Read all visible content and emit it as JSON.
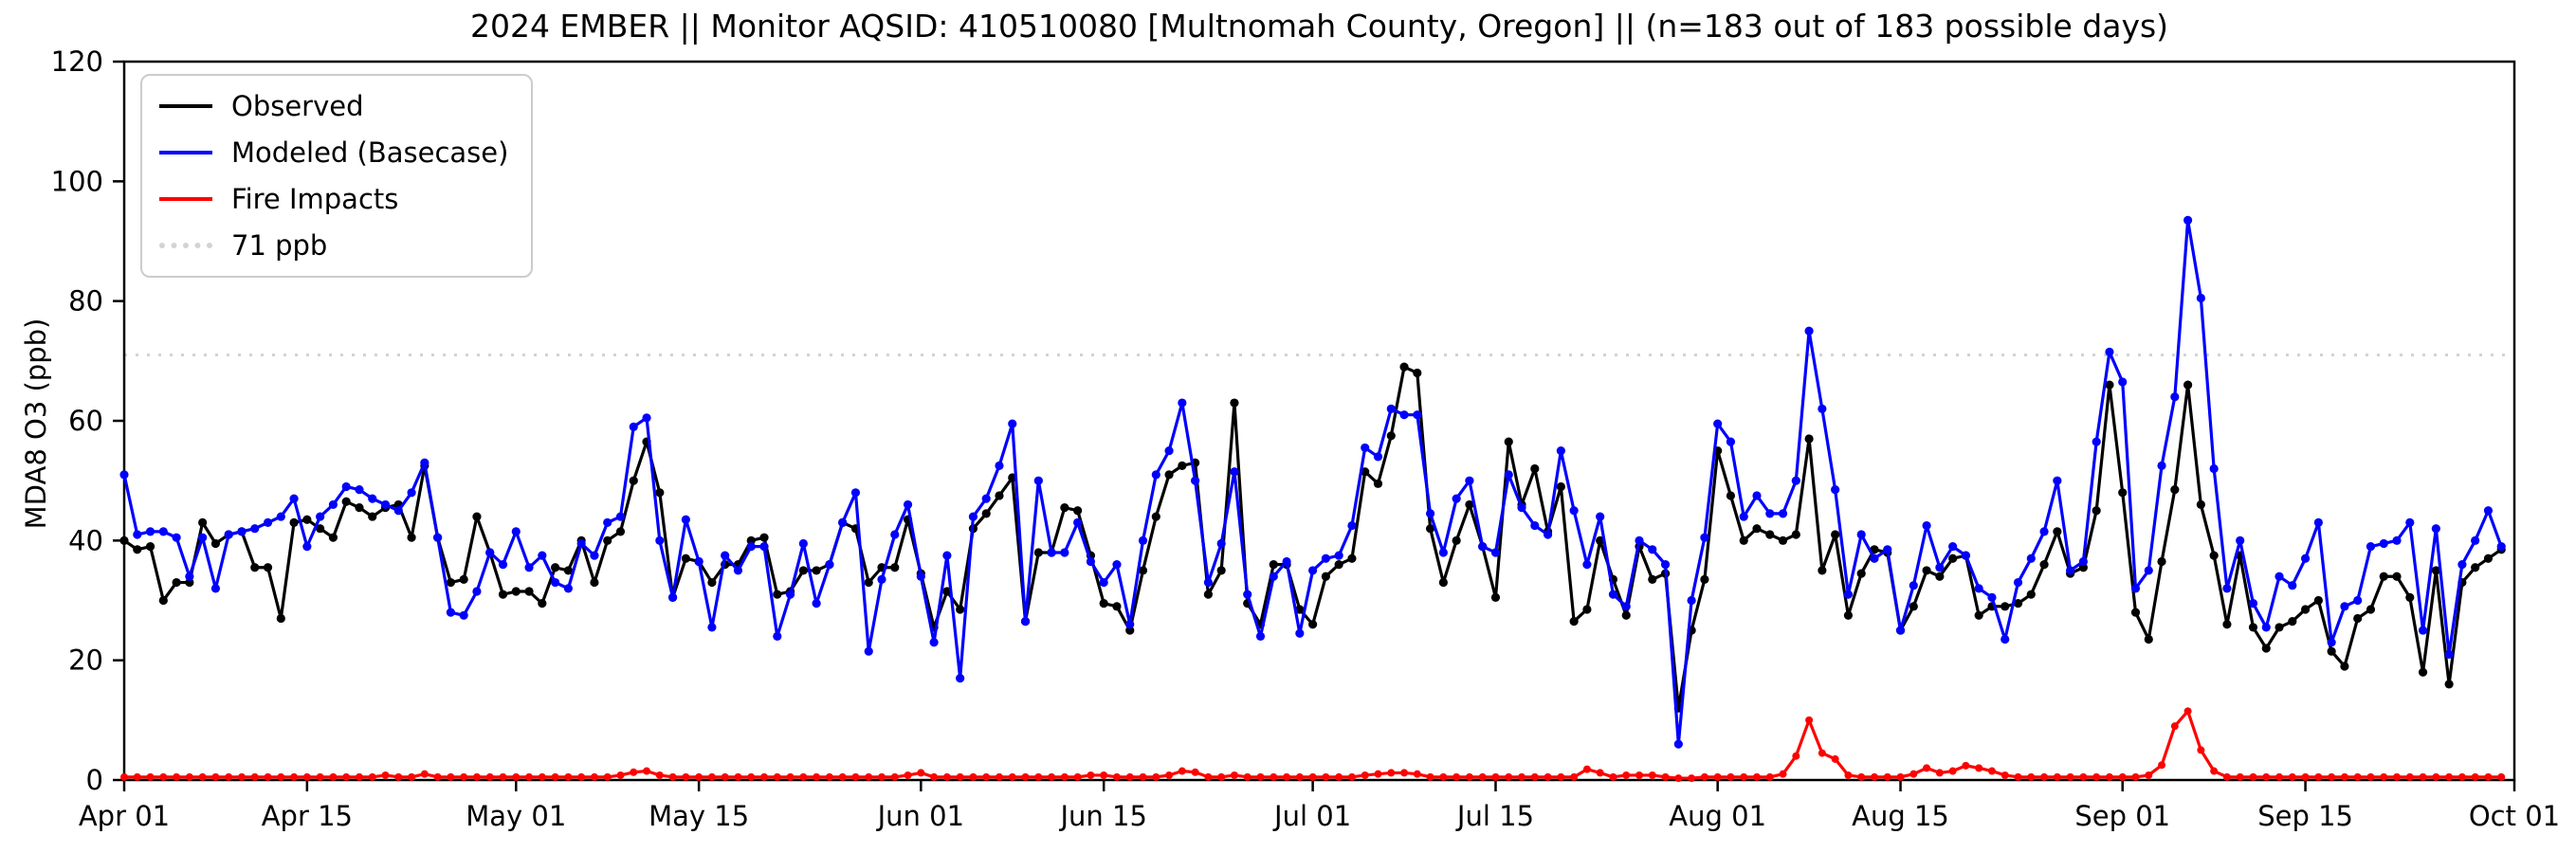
{
  "title": "2024 EMBER || Monitor AQSID: 410510080 [Multnomah County, Oregon] || (n=183 out of 183 possible days)",
  "axes": {
    "ylabel": "MDA8 O3 (ppb)",
    "ylim": [
      0,
      120
    ],
    "yticks": [
      0,
      20,
      40,
      60,
      80,
      100,
      120
    ],
    "xtick_labels": [
      "Apr 01",
      "Apr 15",
      "May 01",
      "May 15",
      "Jun 01",
      "Jun 15",
      "Jul 01",
      "Jul 15",
      "Aug 01",
      "Aug 15",
      "Sep 01",
      "Sep 15",
      "Oct 01"
    ],
    "xtick_days": [
      0,
      14,
      30,
      44,
      61,
      75,
      91,
      105,
      122,
      136,
      153,
      167,
      183
    ],
    "n_days": 183
  },
  "legend": [
    {
      "label": "Observed",
      "color": "#000000",
      "style": "solid"
    },
    {
      "label": "Modeled (Basecase)",
      "color": "#0000ff",
      "style": "solid"
    },
    {
      "label": "Fire Impacts",
      "color": "#ff0000",
      "style": "solid"
    },
    {
      "label": "71 ppb",
      "color": "#d3d3d3",
      "style": "dotted"
    }
  ],
  "chart_data": {
    "type": "line",
    "title": "2024 EMBER || Monitor AQSID: 410510080 [Multnomah County, Oregon] || (n=183 out of 183 possible days)",
    "xlabel": "",
    "ylabel": "MDA8 O3 (ppb)",
    "ylim": [
      0,
      120
    ],
    "grid": false,
    "legend_position": "upper left",
    "x_start": "Apr 01",
    "x_end": "Sep 30",
    "x_count": 183,
    "threshold": {
      "label": "71 ppb",
      "value": 71,
      "color": "#d3d3d3",
      "style": "dotted"
    },
    "series": [
      {
        "name": "Observed",
        "color": "#000000",
        "marker": "circle",
        "values": [
          40,
          38.5,
          39,
          30,
          33,
          33,
          43,
          39.5,
          41,
          41.5,
          35.5,
          35.5,
          27,
          43,
          43.5,
          42,
          40.5,
          46.5,
          45.5,
          44,
          45.5,
          46,
          40.5,
          52.5,
          40.5,
          33,
          33.5,
          44,
          38,
          31,
          31.5,
          31.5,
          29.5,
          35.5,
          35,
          40,
          33,
          40,
          41.5,
          50,
          56.5,
          48,
          30.5,
          37,
          36.5,
          33,
          36,
          36,
          40,
          40.5,
          31,
          31.5,
          35,
          35,
          36,
          43,
          42,
          33,
          35.5,
          35.5,
          43.5,
          34.5,
          25.5,
          31.5,
          28.5,
          42,
          44.5,
          47.5,
          50.5,
          26.5,
          38,
          38,
          45.5,
          45,
          37.5,
          29.5,
          29,
          25,
          35,
          44,
          51,
          52.5,
          53,
          31,
          35,
          63,
          29.5,
          26,
          36,
          36,
          28.5,
          26,
          34,
          36,
          37,
          51.5,
          49.5,
          57.5,
          69,
          68,
          42,
          33,
          40,
          46,
          39,
          30.5,
          56.5,
          46,
          52,
          41.5,
          49,
          26.5,
          28.5,
          40,
          33.5,
          27.5,
          39,
          33.5,
          34.5,
          12,
          25,
          33.5,
          55,
          47.5,
          40,
          42,
          41,
          40,
          41,
          57,
          35,
          41,
          27.5,
          34.5,
          38.5,
          38,
          25,
          29,
          35,
          34,
          37,
          37.5,
          27.5,
          29,
          29,
          29.5,
          31,
          36,
          41.5,
          34.5,
          35.5,
          45,
          66,
          48,
          28,
          23.5,
          36.5,
          48.5,
          66,
          46,
          37.5,
          26,
          37.5,
          25.5,
          22,
          25.5,
          26.5,
          28.5,
          30,
          21.5,
          19,
          27,
          28.5,
          34,
          34,
          30.5,
          18,
          35,
          16,
          33,
          35.5,
          37,
          38.5
        ]
      },
      {
        "name": "Modeled (Basecase)",
        "color": "#0000ff",
        "marker": "circle",
        "values": [
          51,
          41,
          41.5,
          41.5,
          40.5,
          34,
          40.5,
          32,
          41,
          41.5,
          42,
          43,
          44,
          47,
          39,
          44,
          46,
          49,
          48.5,
          47,
          46,
          45,
          48,
          53,
          40.5,
          28,
          27.5,
          31.5,
          38,
          36,
          41.5,
          35.5,
          37.5,
          33,
          32,
          39.5,
          37.5,
          43,
          44,
          59,
          60.5,
          40,
          30.5,
          43.5,
          36.5,
          25.5,
          37.5,
          35,
          39,
          39,
          24,
          31,
          39.5,
          29.5,
          36,
          43,
          48,
          21.5,
          33.5,
          41,
          46,
          34,
          23,
          37.5,
          17,
          44,
          47,
          52.5,
          59.5,
          26.5,
          50,
          38,
          38,
          43,
          36.5,
          33,
          36,
          26,
          40,
          51,
          55,
          63,
          50,
          33,
          39.5,
          51.5,
          31,
          24,
          34,
          36.5,
          24.5,
          35,
          37,
          37.5,
          42.5,
          55.5,
          54,
          62,
          61,
          61,
          44.5,
          38,
          47,
          50,
          39,
          38,
          51,
          45.5,
          42.5,
          41,
          55,
          45,
          36,
          44,
          31,
          29,
          40,
          38.5,
          36,
          6,
          30,
          40.5,
          59.5,
          56.5,
          44,
          47.5,
          44.5,
          44.5,
          50,
          75,
          62,
          48.5,
          31,
          41,
          37,
          38.5,
          25,
          32.5,
          42.5,
          35.5,
          39,
          37.5,
          32,
          30.5,
          23.5,
          33,
          37,
          41.5,
          50,
          35,
          36.5,
          56.5,
          71.5,
          66.5,
          32,
          35,
          52.5,
          64,
          93.5,
          80.5,
          52,
          32,
          40,
          29.5,
          25.5,
          34,
          32.5,
          37,
          43,
          23,
          29,
          30,
          39,
          39.5,
          40,
          43,
          25,
          42,
          21,
          36,
          40,
          45,
          39
        ]
      },
      {
        "name": "Fire Impacts",
        "color": "#ff0000",
        "marker": "circle",
        "values": [
          0.5,
          0.5,
          0.5,
          0.5,
          0.5,
          0.5,
          0.5,
          0.5,
          0.5,
          0.5,
          0.5,
          0.5,
          0.5,
          0.5,
          0.5,
          0.5,
          0.5,
          0.5,
          0.5,
          0.5,
          0.8,
          0.5,
          0.5,
          1,
          0.5,
          0.5,
          0.5,
          0.5,
          0.5,
          0.5,
          0.5,
          0.5,
          0.5,
          0.5,
          0.5,
          0.5,
          0.5,
          0.5,
          0.8,
          1.3,
          1.5,
          0.8,
          0.5,
          0.5,
          0.5,
          0.5,
          0.5,
          0.5,
          0.5,
          0.5,
          0.5,
          0.5,
          0.5,
          0.5,
          0.5,
          0.5,
          0.5,
          0.5,
          0.5,
          0.5,
          0.8,
          1.2,
          0.5,
          0.5,
          0.5,
          0.5,
          0.5,
          0.5,
          0.5,
          0.5,
          0.5,
          0.5,
          0.5,
          0.5,
          0.8,
          0.8,
          0.5,
          0.5,
          0.5,
          0.5,
          0.8,
          1.5,
          1.3,
          0.5,
          0.5,
          0.8,
          0.5,
          0.5,
          0.5,
          0.5,
          0.5,
          0.5,
          0.5,
          0.5,
          0.5,
          0.8,
          1,
          1.2,
          1.2,
          1,
          0.5,
          0.5,
          0.5,
          0.5,
          0.5,
          0.5,
          0.5,
          0.5,
          0.5,
          0.5,
          0.5,
          0.5,
          1.8,
          1.2,
          0.5,
          0.8,
          0.8,
          0.8,
          0.5,
          0.3,
          0.3,
          0.5,
          0.5,
          0.5,
          0.5,
          0.5,
          0.5,
          1,
          4,
          10,
          4.5,
          3.5,
          0.8,
          0.5,
          0.5,
          0.5,
          0.5,
          1,
          2,
          1.2,
          1.5,
          2.4,
          2,
          1.5,
          0.8,
          0.5,
          0.5,
          0.5,
          0.5,
          0.5,
          0.5,
          0.5,
          0.5,
          0.5,
          0.5,
          0.8,
          2.5,
          9,
          11.5,
          5,
          1.5,
          0.5,
          0.5,
          0.5,
          0.5,
          0.5,
          0.5,
          0.5,
          0.5,
          0.5,
          0.5,
          0.5,
          0.5,
          0.5,
          0.5,
          0.5,
          0.5,
          0.5,
          0.5,
          0.5,
          0.5,
          0.5,
          0.5
        ]
      }
    ]
  }
}
